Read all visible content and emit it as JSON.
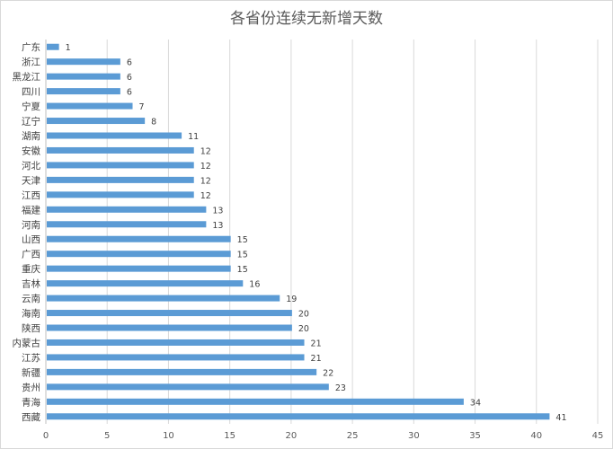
{
  "chart_data": {
    "type": "bar",
    "orientation": "horizontal",
    "title": "各省份连续无新增天数",
    "categories": [
      "广东",
      "浙江",
      "黑龙江",
      "四川",
      "宁夏",
      "辽宁",
      "湖南",
      "安徽",
      "河北",
      "天津",
      "江西",
      "福建",
      "河南",
      "山西",
      "广西",
      "重庆",
      "吉林",
      "云南",
      "海南",
      "陕西",
      "内蒙古",
      "江苏",
      "新疆",
      "贵州",
      "青海",
      "西藏"
    ],
    "values": [
      1,
      6,
      6,
      6,
      7,
      8,
      11,
      12,
      12,
      12,
      12,
      13,
      13,
      15,
      15,
      15,
      16,
      19,
      20,
      20,
      21,
      21,
      22,
      23,
      34,
      41
    ],
    "xlim": [
      0,
      45
    ],
    "xticks": [
      0,
      5,
      10,
      15,
      20,
      25,
      30,
      35,
      40,
      45
    ],
    "grid": true,
    "legend": "none",
    "data_labels": true,
    "bar_color": "#5b9bd5"
  }
}
